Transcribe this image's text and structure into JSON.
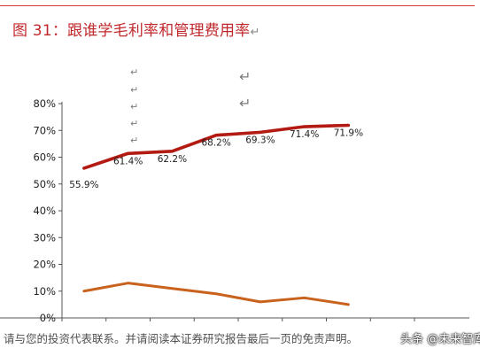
{
  "header": {
    "title": "图 31：跟谁学毛利率和管理费用率",
    "return_glyph": "↵"
  },
  "footer": {
    "disclaimer": "请与您的投资代表联系。并请阅读本证券研究报告最后一页的免责声明。",
    "watermark": "头条 @未来智库"
  },
  "colors": {
    "accent": "#c0292c",
    "gross_margin": "#b21a12",
    "admin_expense": "#c8621c"
  },
  "chart_data": {
    "type": "line",
    "ylim": [
      0,
      80
    ],
    "y_ticks": [
      "0%",
      "10%",
      "20%",
      "30%",
      "40%",
      "50%",
      "60%",
      "70%",
      "80%"
    ],
    "x_count": 8,
    "series": [
      {
        "key": "gross_margin",
        "values": [
          55.9,
          61.4,
          62.2,
          68.2,
          69.3,
          71.4,
          71.9
        ],
        "labels": [
          "55.9%",
          "61.4%",
          "62.2%",
          "68.2%",
          "69.3%",
          "71.4%",
          "71.9%"
        ]
      },
      {
        "key": "admin_expense",
        "values": [
          10,
          13,
          11,
          9,
          6,
          7.5,
          5
        ]
      }
    ]
  }
}
